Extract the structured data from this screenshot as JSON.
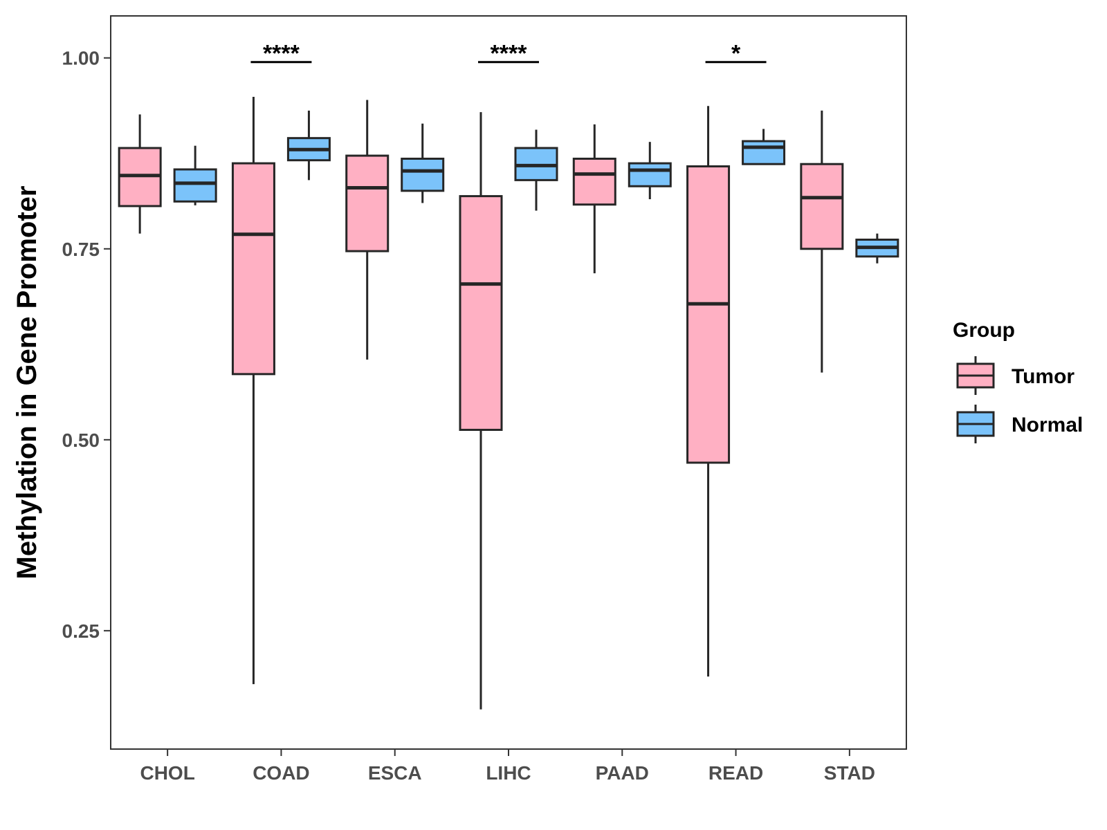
{
  "chart_data": {
    "type": "boxplot",
    "title": "",
    "xlabel": "",
    "ylabel": "Methylation in Gene Promoter",
    "ylim": [
      0.095,
      1.055
    ],
    "yticks": [
      0.25,
      0.5,
      0.75,
      1.0
    ],
    "ytick_labels": [
      "0.25",
      "0.50",
      "0.75",
      "1.00"
    ],
    "categories": [
      "CHOL",
      "COAD",
      "ESCA",
      "LIHC",
      "PAAD",
      "READ",
      "STAD"
    ],
    "legend": {
      "title": "Group",
      "position": "right",
      "entries": [
        "Tumor",
        "Normal"
      ]
    },
    "series": [
      {
        "name": "Tumor",
        "color": "#FFB0C3",
        "boxes": [
          {
            "min": 0.77,
            "q1": 0.806,
            "median": 0.846,
            "q3": 0.882,
            "max": 0.926
          },
          {
            "min": 0.18,
            "q1": 0.586,
            "median": 0.769,
            "q3": 0.862,
            "max": 0.949
          },
          {
            "min": 0.605,
            "q1": 0.747,
            "median": 0.83,
            "q3": 0.872,
            "max": 0.945
          },
          {
            "min": 0.147,
            "q1": 0.513,
            "median": 0.704,
            "q3": 0.819,
            "max": 0.929
          },
          {
            "min": 0.718,
            "q1": 0.808,
            "median": 0.848,
            "q3": 0.868,
            "max": 0.913
          },
          {
            "min": 0.19,
            "q1": 0.47,
            "median": 0.678,
            "q3": 0.858,
            "max": 0.937
          },
          {
            "min": 0.588,
            "q1": 0.75,
            "median": 0.817,
            "q3": 0.861,
            "max": 0.931
          }
        ]
      },
      {
        "name": "Normal",
        "color": "#7BC3FA",
        "boxes": [
          {
            "min": 0.807,
            "q1": 0.812,
            "median": 0.836,
            "q3": 0.854,
            "max": 0.885
          },
          {
            "min": 0.84,
            "q1": 0.866,
            "median": 0.88,
            "q3": 0.895,
            "max": 0.931
          },
          {
            "min": 0.81,
            "q1": 0.826,
            "median": 0.852,
            "q3": 0.868,
            "max": 0.914
          },
          {
            "min": 0.8,
            "q1": 0.84,
            "median": 0.859,
            "q3": 0.882,
            "max": 0.906
          },
          {
            "min": 0.815,
            "q1": 0.832,
            "median": 0.853,
            "q3": 0.862,
            "max": 0.89
          },
          {
            "min": 0.86,
            "q1": 0.861,
            "median": 0.883,
            "q3": 0.891,
            "max": 0.907
          },
          {
            "min": 0.731,
            "q1": 0.74,
            "median": 0.752,
            "q3": 0.762,
            "max": 0.77
          }
        ]
      }
    ],
    "significance": [
      {
        "category": "COAD",
        "label": "****"
      },
      {
        "category": "LIHC",
        "label": "****"
      },
      {
        "category": "READ",
        "label": "*"
      }
    ]
  }
}
